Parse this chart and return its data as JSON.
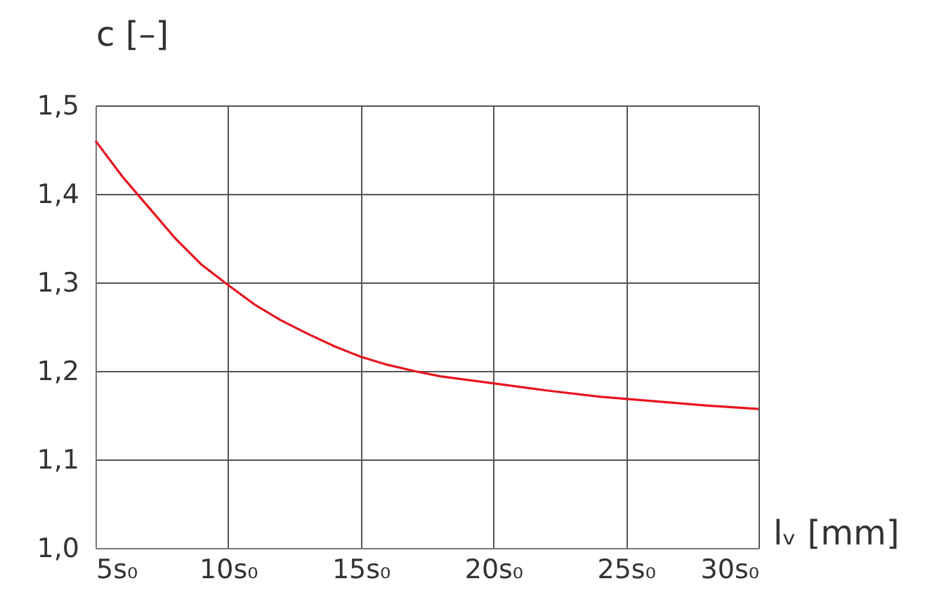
{
  "chart_data": {
    "type": "line",
    "xlabel": "lᵥ [mm]",
    "ylabel": "c [–]",
    "x": [
      5,
      6,
      7,
      8,
      9,
      10,
      11,
      12,
      13,
      14,
      15,
      16,
      17,
      18,
      20,
      22,
      24,
      26,
      28,
      30
    ],
    "series": [
      {
        "color": "#e8141e",
        "values": [
          1.46,
          1.42,
          1.385,
          1.35,
          1.32,
          1.297,
          1.275,
          1.257,
          1.242,
          1.228,
          1.216,
          1.207,
          1.2,
          1.194,
          1.186,
          1.178,
          1.171,
          1.166,
          1.161,
          1.157
        ]
      }
    ],
    "xlim": [
      5,
      30
    ],
    "ylim": [
      1.0,
      1.5
    ],
    "xticks": [
      {
        "value": 5,
        "label": "5s₀"
      },
      {
        "value": 10,
        "label": "10s₀"
      },
      {
        "value": 15,
        "label": "15s₀"
      },
      {
        "value": 20,
        "label": "20s₀"
      },
      {
        "value": 25,
        "label": "25s₀"
      },
      {
        "value": 30,
        "label": "30s₀"
      }
    ],
    "yticks": [
      {
        "value": 1.0,
        "label": "1,0"
      },
      {
        "value": 1.1,
        "label": "1,1"
      },
      {
        "value": 1.2,
        "label": "1,2"
      },
      {
        "value": 1.3,
        "label": "1,3"
      },
      {
        "value": 1.4,
        "label": "1,4"
      },
      {
        "value": 1.5,
        "label": "1,5"
      }
    ],
    "grid": true,
    "line_style": "solid",
    "marker": "none"
  }
}
